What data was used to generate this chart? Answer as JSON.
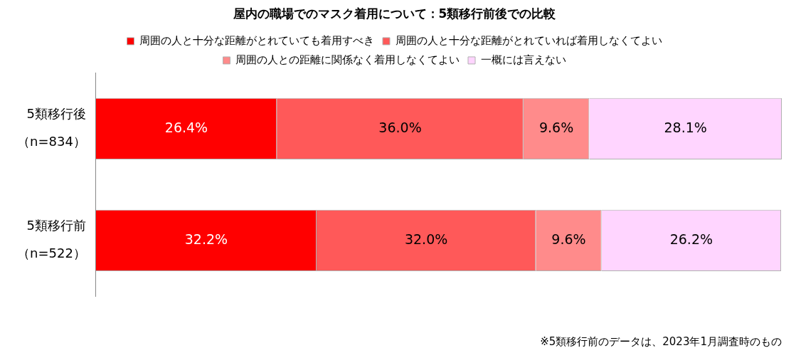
{
  "chart_data": {
    "type": "bar",
    "orientation": "horizontal",
    "stacked": true,
    "title": "屋内の職場でのマスク着用について：5類移行前後での比較",
    "categories": [
      "5類移行後（n=834）",
      "5類移行前（n=522）"
    ],
    "series": [
      {
        "name": "周囲の人と十分な距離がとれていても着用すべき",
        "color": "#ff0000",
        "values": [
          26.4,
          32.2
        ],
        "value_labels": [
          "26.4%",
          "32.2%"
        ]
      },
      {
        "name": "周囲の人と十分な距離がとれていれば着用しなくてよい",
        "color": "#ff5959",
        "values": [
          36.0,
          32.0
        ],
        "value_labels": [
          "36.0%",
          "32.0%"
        ]
      },
      {
        "name": "周囲の人との距離に関係なく着用しなくてよい",
        "color": "#ff8b8b",
        "values": [
          9.6,
          9.6
        ],
        "value_labels": [
          "9.6%",
          "9.6%"
        ]
      },
      {
        "name": "一概には言えない",
        "color": "#ffd5ff",
        "values": [
          28.1,
          26.2
        ],
        "value_labels": [
          "28.1%",
          "26.2%"
        ]
      }
    ],
    "tick_labels": "y",
    "grid": false,
    "legend": "top",
    "annotations": [
      "※5類移行前のデータは、2023年1月調査時のもの"
    ]
  }
}
